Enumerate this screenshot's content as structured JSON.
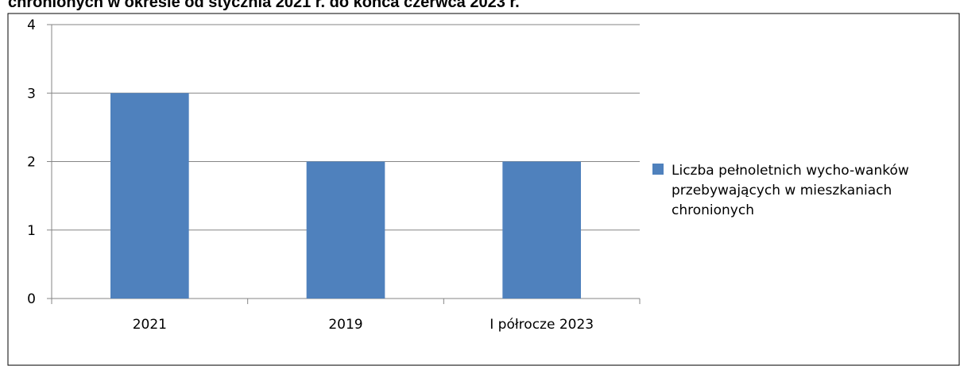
{
  "chart_data": {
    "type": "bar",
    "title": "chronionych w okresie od stycznia 2021 r. do końca czerwca 2023 r.",
    "categories": [
      "2021",
      "2019",
      "I półrocze 2023"
    ],
    "series": [
      {
        "name": "Liczba pełnoletnich wycho-wanków przebywających w mieszkaniach chronionych",
        "color": "#4f81bd",
        "values": [
          3,
          2,
          2
        ]
      }
    ],
    "ylim": [
      0,
      4
    ],
    "yticks": [
      0,
      1,
      2,
      3,
      4
    ],
    "grid": true,
    "legend": "right"
  }
}
